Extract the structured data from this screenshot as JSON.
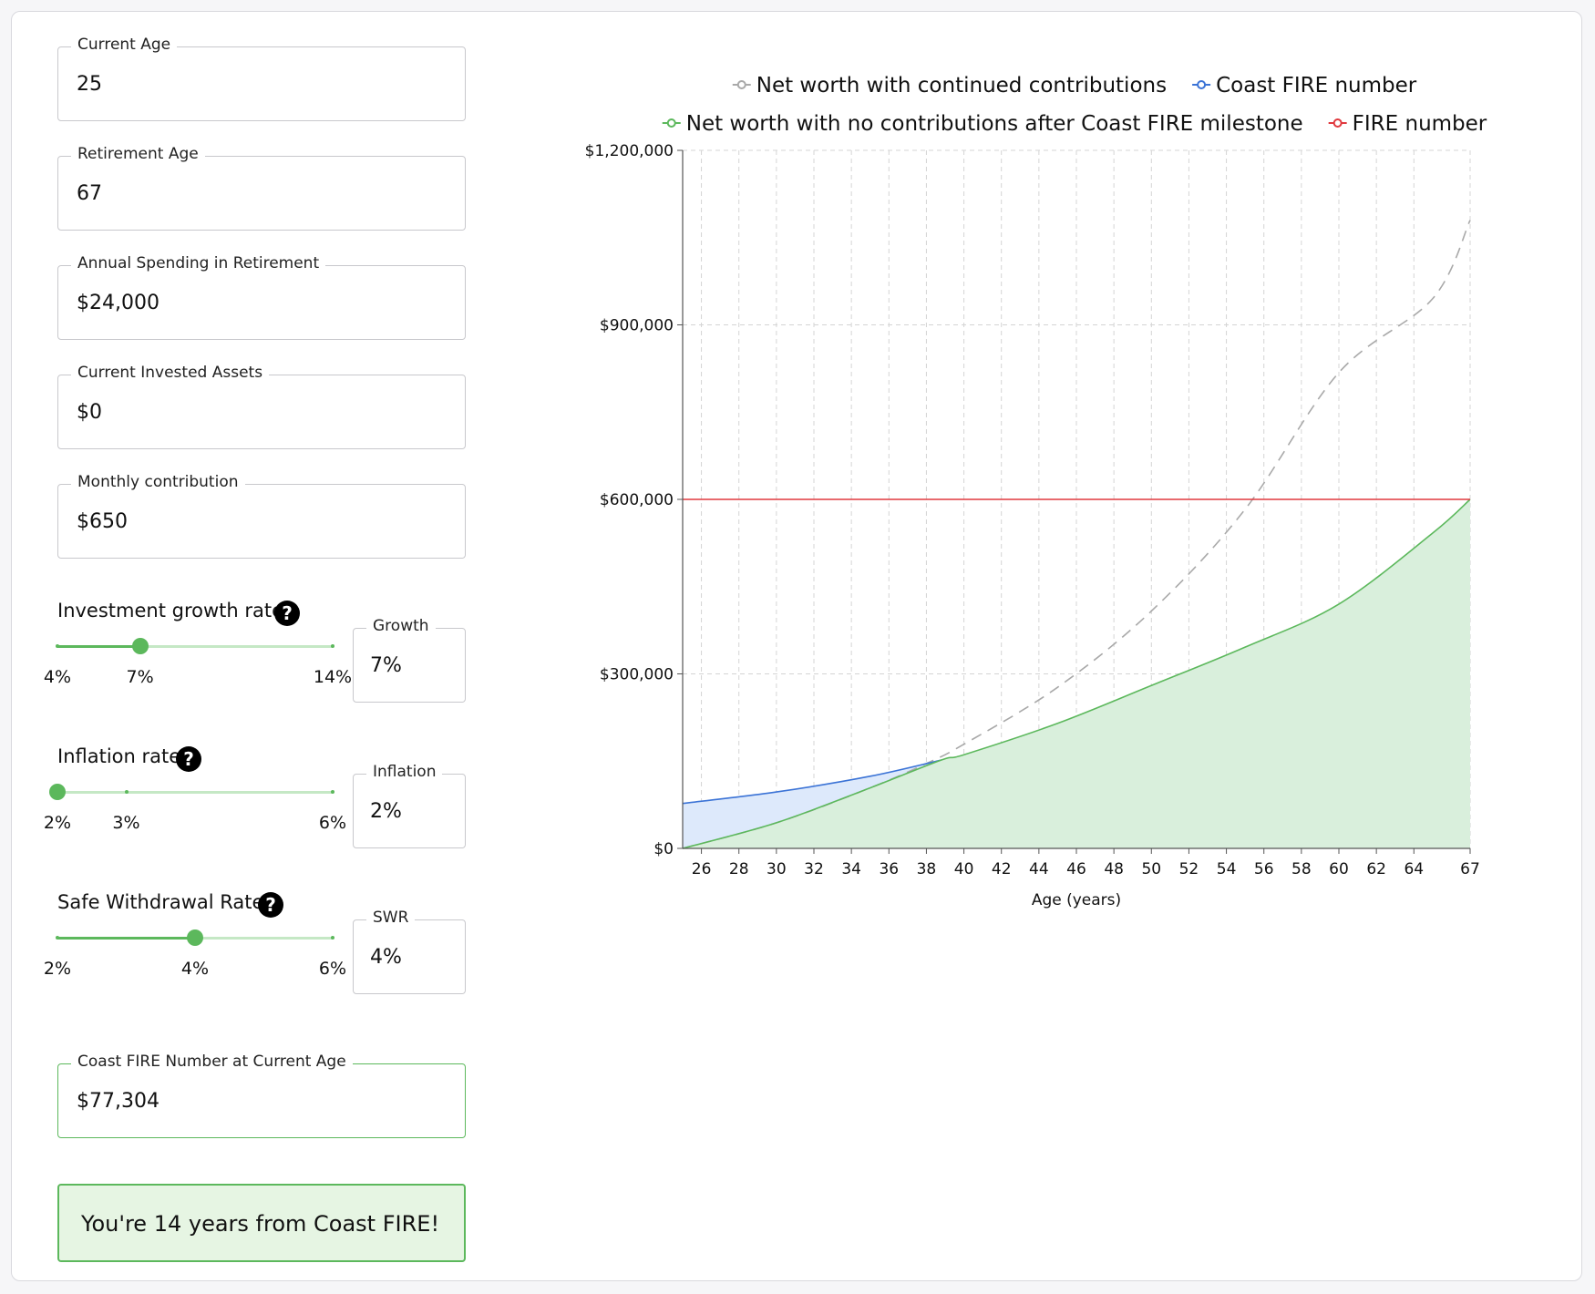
{
  "inputs": {
    "current_age": {
      "label": "Current Age",
      "value": "25"
    },
    "retirement_age": {
      "label": "Retirement Age",
      "value": "67"
    },
    "annual_spending": {
      "label": "Annual Spending in Retirement",
      "value": "$24,000"
    },
    "current_assets": {
      "label": "Current Invested Assets",
      "value": "$0"
    },
    "monthly_contribution": {
      "label": "Monthly contribution",
      "value": "$650"
    }
  },
  "sliders": {
    "growth": {
      "label": "Investment growth rate",
      "field_label": "Growth",
      "field_value": "7%",
      "min": 4,
      "max": 14,
      "value": 7,
      "marks": [
        "4%",
        "7%",
        "14%"
      ],
      "mark_values": [
        4,
        7,
        14
      ]
    },
    "inflation": {
      "label": "Inflation rate",
      "field_label": "Inflation",
      "field_value": "2%",
      "min": 2,
      "max": 6,
      "value": 2,
      "marks": [
        "2%",
        "3%",
        "6%"
      ],
      "mark_values": [
        2,
        3,
        6
      ]
    },
    "swr": {
      "label": "Safe Withdrawal Rate",
      "field_label": "SWR",
      "field_value": "4%",
      "min": 2,
      "max": 6,
      "value": 4,
      "marks": [
        "2%",
        "4%",
        "6%"
      ],
      "mark_values": [
        2,
        4,
        6
      ]
    }
  },
  "help_icon": "?",
  "result": {
    "coast_label": "Coast FIRE Number at Current Age",
    "coast_value": "$77,304",
    "message": "You're 14 years from Coast FIRE!"
  },
  "colors": {
    "green": "#5cb85c",
    "green_fill": "#d9efdc",
    "blue": "#3b73d6",
    "blue_fill": "#dde9fb",
    "red": "#e0393e",
    "gray": "#a9a9a9"
  },
  "chart_data": {
    "type": "line",
    "xlabel": "Age (years)",
    "ylabel": "",
    "xlim": [
      25,
      67
    ],
    "ylim": [
      0,
      1200000
    ],
    "x_ticks": [
      26,
      28,
      30,
      32,
      34,
      36,
      38,
      40,
      42,
      44,
      46,
      48,
      50,
      52,
      54,
      56,
      58,
      60,
      62,
      64,
      67
    ],
    "y_ticks": [
      0,
      300000,
      600000,
      900000,
      1200000
    ],
    "y_tick_labels": [
      "$0",
      "$300,000",
      "$600,000",
      "$900,000",
      "$1,200,000"
    ],
    "grid": true,
    "legend_position": "top",
    "legend": [
      "Net worth with continued contributions",
      "Coast FIRE number",
      "Net worth with no contributions after Coast FIRE milestone",
      "FIRE number"
    ],
    "series": [
      {
        "name": "Net worth with continued contributions",
        "x": [
          25,
          30,
          35,
          38,
          40,
          45,
          50,
          55,
          60,
          65,
          67
        ],
        "y": [
          0,
          44000,
          104000,
          146000,
          179000,
          277000,
          408000,
          583000,
          818000,
          945000,
          1080000
        ]
      },
      {
        "name": "Coast FIRE number",
        "x": [
          25,
          30,
          35,
          38.8
        ],
        "y": [
          77304,
          97000,
          124000,
          152000
        ]
      },
      {
        "name": "Net worth with no contributions after Coast FIRE milestone",
        "x": [
          25,
          30,
          35,
          38.8,
          40,
          45,
          50,
          55,
          60,
          65,
          67
        ],
        "y": [
          0,
          44000,
          104000,
          152000,
          161000,
          215000,
          280000,
          346000,
          420000,
          542000,
          600000
        ]
      },
      {
        "name": "FIRE number",
        "x": [
          25,
          67
        ],
        "y": [
          600000,
          600000
        ]
      }
    ]
  }
}
